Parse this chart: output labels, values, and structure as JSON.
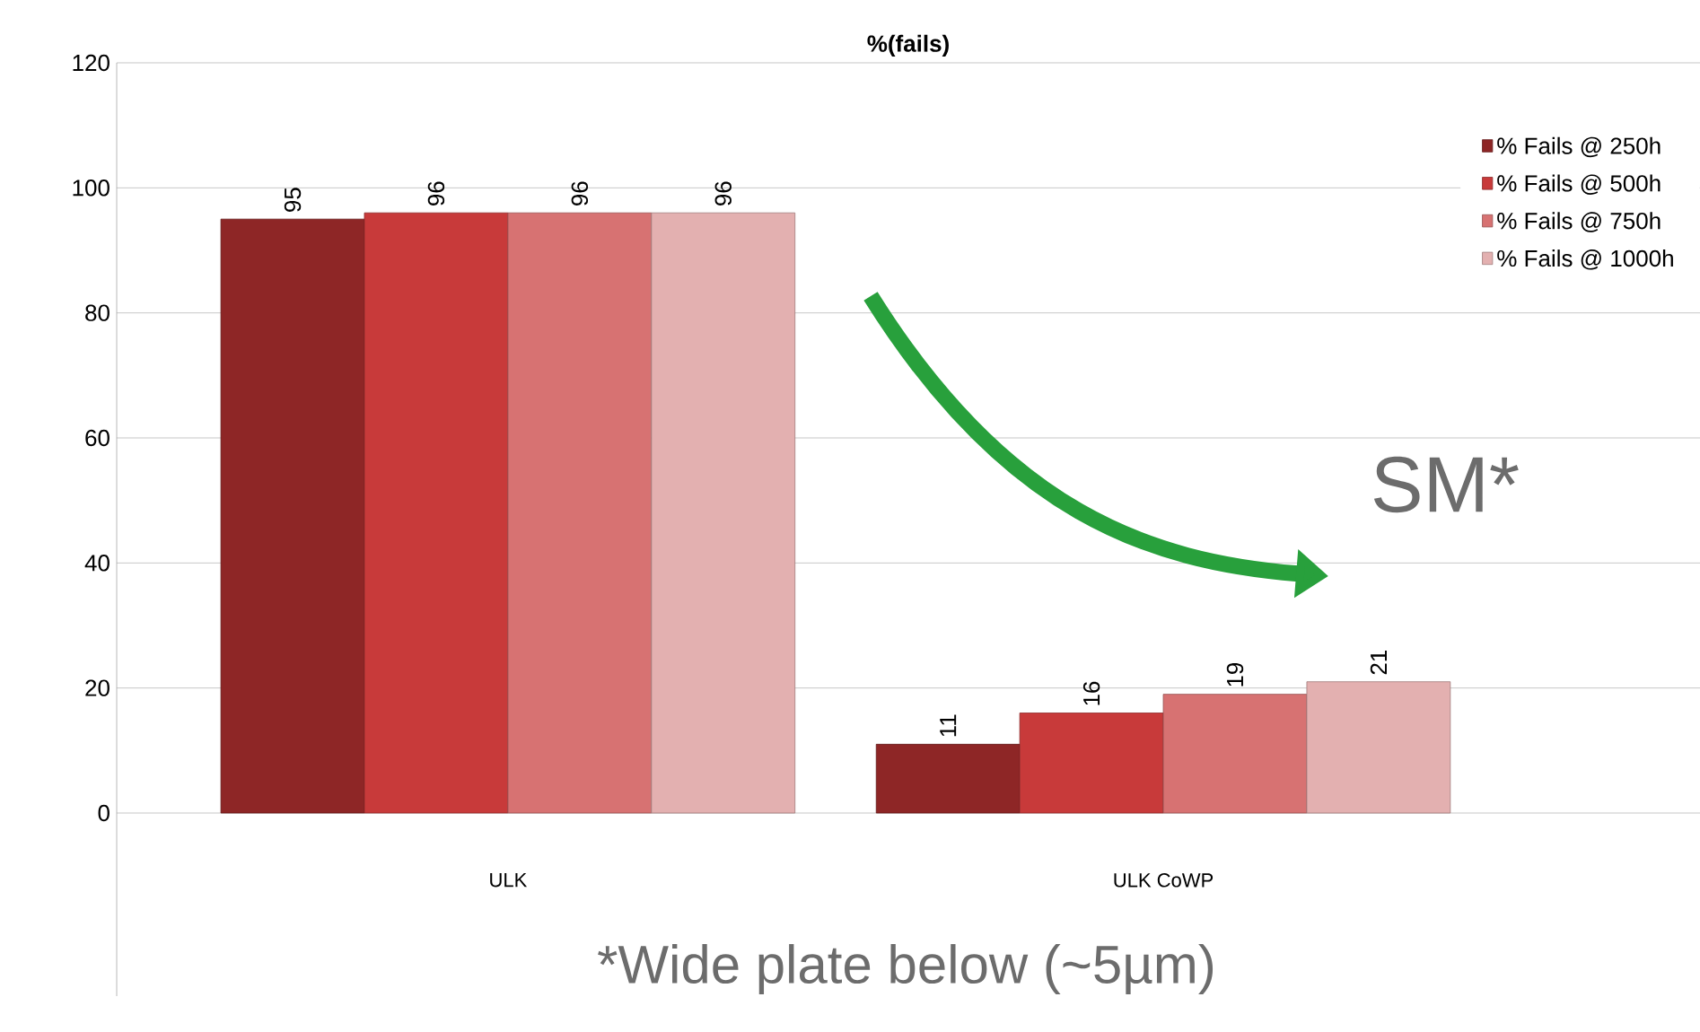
{
  "chart_data": {
    "type": "bar",
    "title": "%(fails)",
    "categories": [
      "ULK",
      "ULK CoWP"
    ],
    "series": [
      {
        "name": "% Fails @ 250h",
        "color": "#8e2626",
        "values": [
          95,
          11
        ]
      },
      {
        "name": "% Fails @ 500h",
        "color": "#c83a3a",
        "values": [
          96,
          16
        ]
      },
      {
        "name": "% Fails @ 750h",
        "color": "#d77272",
        "values": [
          96,
          19
        ]
      },
      {
        "name": "% Fails @ 1000h",
        "color": "#e3b0b0",
        "values": [
          96,
          21
        ]
      }
    ],
    "ylim": [
      0,
      120
    ],
    "yticks": [
      0,
      20,
      40,
      60,
      80,
      100,
      120
    ],
    "grid": "y",
    "legend": "top right",
    "data_labels": true,
    "annotations": [
      "SM*",
      "*Wide plate below (~5µm)"
    ]
  }
}
